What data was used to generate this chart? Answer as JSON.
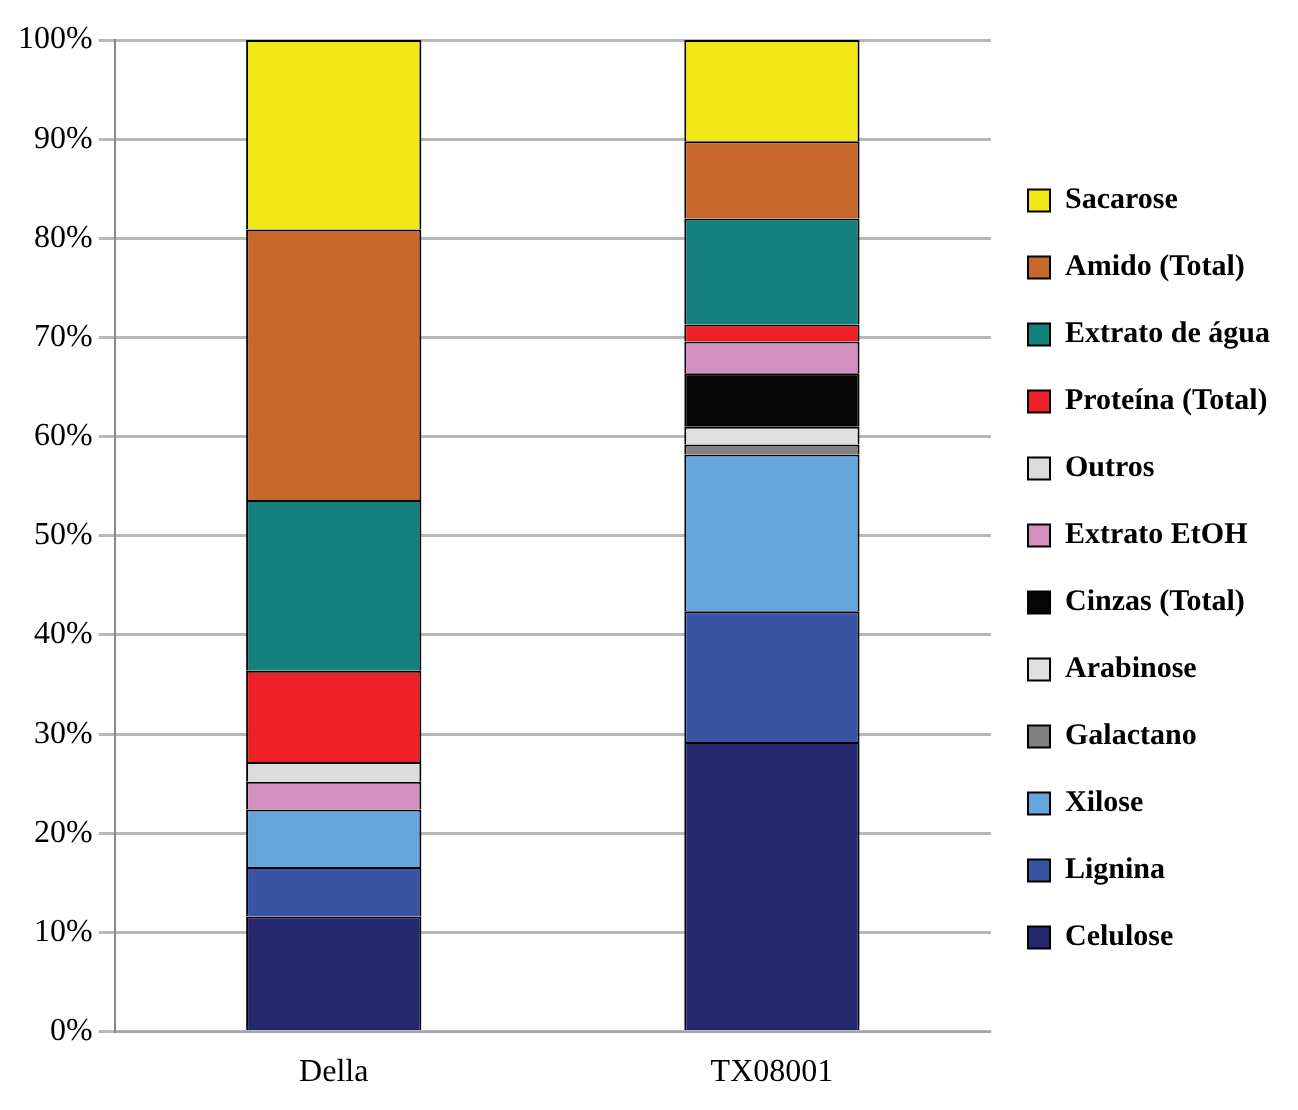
{
  "chart_data": {
    "type": "bar",
    "stacked": true,
    "categories": [
      "Della",
      "TX08001"
    ],
    "series": [
      {
        "name": "Celulose",
        "color": "#262870",
        "values": [
          11.6,
          29.2
        ]
      },
      {
        "name": "Lignina",
        "color": "#3a54a4",
        "values": [
          5.0,
          13.2
        ]
      },
      {
        "name": "Xilose",
        "color": "#64a6dc",
        "values": [
          5.8,
          15.8
        ]
      },
      {
        "name": "Galactano",
        "color": "#808080",
        "values": [
          0,
          1.0
        ]
      },
      {
        "name": "Arabinose",
        "color": "#e0e0e0",
        "values": [
          0,
          1.8
        ]
      },
      {
        "name": "Cinzas (Total)",
        "color": "#050505",
        "values": [
          0,
          5.4
        ]
      },
      {
        "name": "Extrato EtOH",
        "color": "#d490c0",
        "values": [
          2.8,
          3.2
        ]
      },
      {
        "name": "Outros",
        "color": "#dcdcdc",
        "values": [
          2.0,
          0
        ]
      },
      {
        "name": "Proteína (Total)",
        "color": "#ee2026",
        "values": [
          9.2,
          1.7
        ]
      },
      {
        "name": "Extrato de água",
        "color": "#13807c",
        "values": [
          17.2,
          10.7
        ]
      },
      {
        "name": "Amido (Total)",
        "color": "#c8682a",
        "values": [
          27.3,
          7.8
        ]
      },
      {
        "name": "Sacarose",
        "color": "#f2e817",
        "values": [
          19.1,
          10.2
        ]
      }
    ],
    "ylim": [
      0,
      100
    ],
    "yticks": [
      {
        "value": 0,
        "label": "0%"
      },
      {
        "value": 10,
        "label": "10%"
      },
      {
        "value": 20,
        "label": "20%"
      },
      {
        "value": 30,
        "label": "30%"
      },
      {
        "value": 40,
        "label": "40%"
      },
      {
        "value": 50,
        "label": "50%"
      },
      {
        "value": 60,
        "label": "60%"
      },
      {
        "value": 70,
        "label": "70%"
      },
      {
        "value": 80,
        "label": "80%"
      },
      {
        "value": 90,
        "label": "90%"
      },
      {
        "value": 100,
        "label": "100%"
      }
    ],
    "grid": "y",
    "legend": "right"
  }
}
